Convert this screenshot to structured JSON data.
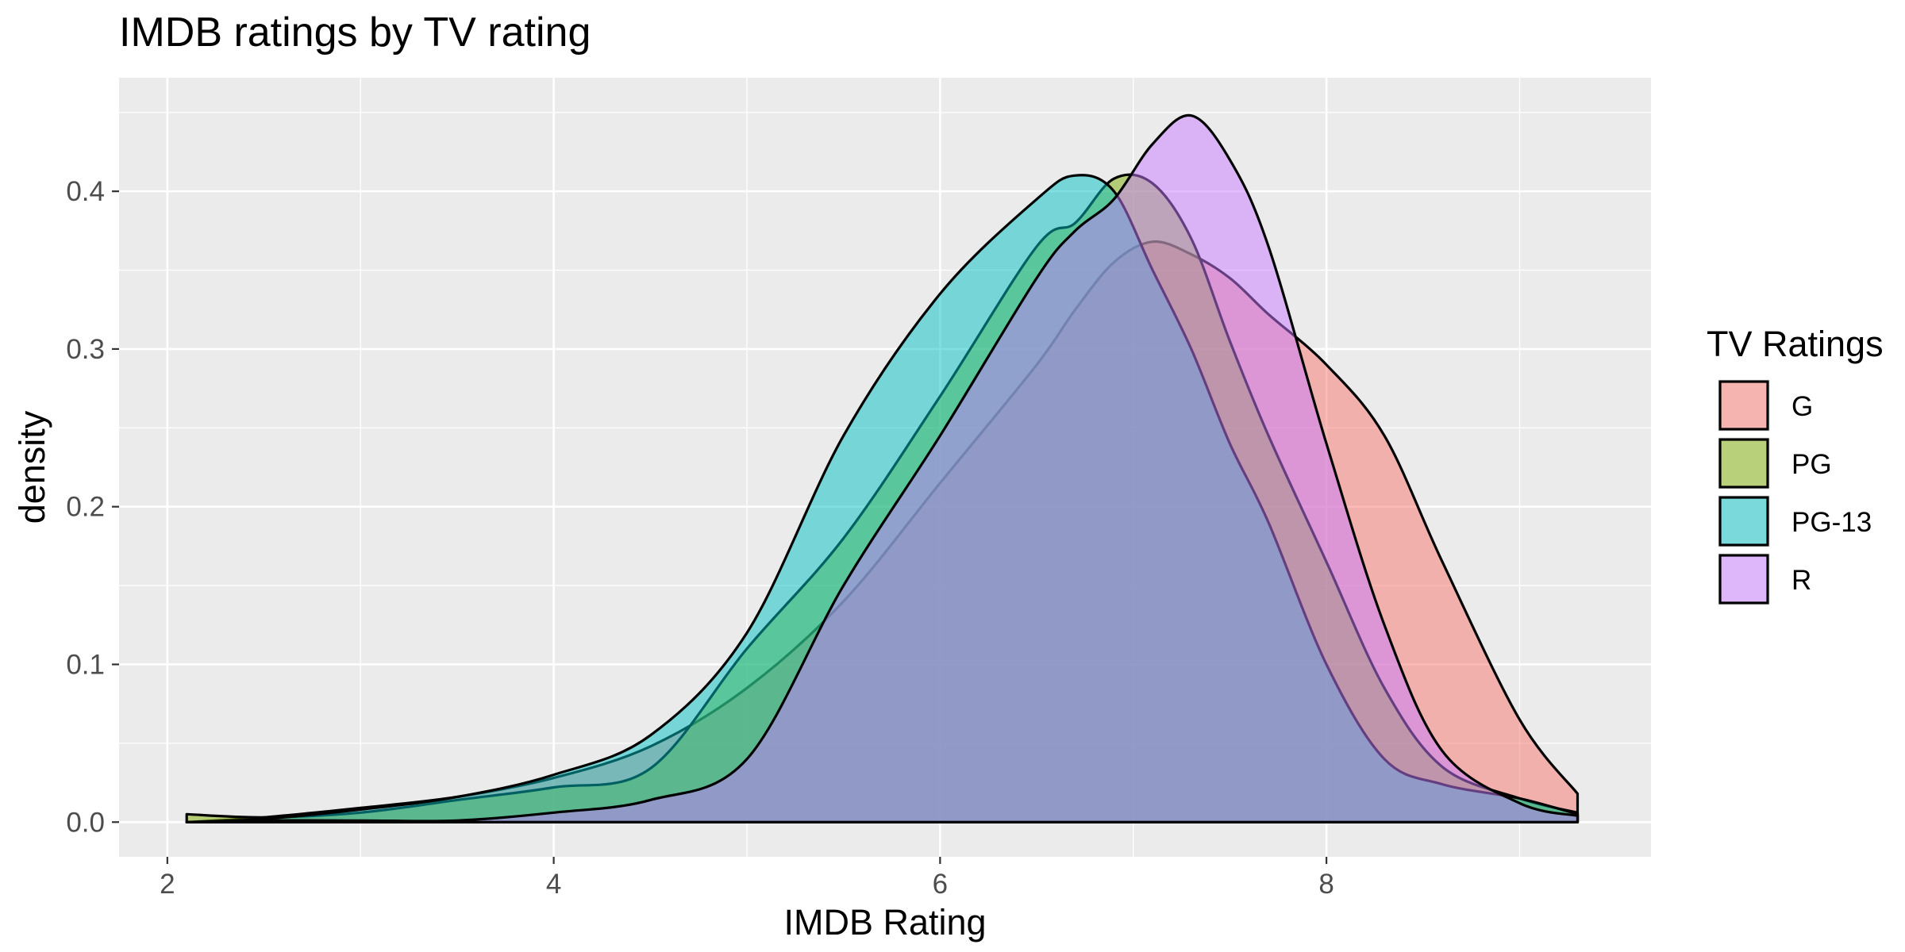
{
  "chart_data": {
    "type": "area",
    "title": "IMDB ratings by TV rating",
    "xlabel": "IMDB Rating",
    "ylabel": "density",
    "xlim": [
      1.75,
      9.68
    ],
    "ylim": [
      -0.022,
      0.472
    ],
    "x_ticks": [
      2,
      4,
      6,
      8
    ],
    "x_tick_labels": [
      "2",
      "4",
      "6",
      "8"
    ],
    "y_ticks": [
      0.0,
      0.1,
      0.2,
      0.3,
      0.4
    ],
    "y_tick_labels": [
      "0.0",
      "0.1",
      "0.2",
      "0.3",
      "0.4"
    ],
    "grid": true,
    "legend": {
      "title": "TV Ratings",
      "position": "right"
    },
    "x": [
      2.1,
      2.5,
      3.0,
      3.5,
      4.0,
      4.5,
      5.0,
      5.5,
      6.0,
      6.5,
      6.7,
      6.9,
      7.1,
      7.3,
      7.5,
      7.7,
      8.0,
      8.3,
      8.6,
      9.0,
      9.3
    ],
    "series": [
      {
        "name": "G",
        "color": "#F8766D",
        "values": [
          0.0,
          0.003,
          0.009,
          0.016,
          0.028,
          0.048,
          0.085,
          0.14,
          0.215,
          0.29,
          0.325,
          0.355,
          0.368,
          0.36,
          0.345,
          0.322,
          0.29,
          0.245,
          0.165,
          0.065,
          0.018
        ]
      },
      {
        "name": "PG",
        "color": "#7CAE00",
        "values": [
          0.005,
          0.003,
          0.006,
          0.014,
          0.022,
          0.034,
          0.11,
          0.18,
          0.27,
          0.365,
          0.38,
          0.408,
          0.405,
          0.37,
          0.305,
          0.245,
          0.165,
          0.085,
          0.035,
          0.015,
          0.006
        ]
      },
      {
        "name": "PG-13",
        "color": "#00BFC4",
        "values": [
          0.0,
          0.002,
          0.008,
          0.016,
          0.03,
          0.055,
          0.12,
          0.245,
          0.335,
          0.395,
          0.41,
          0.4,
          0.35,
          0.3,
          0.24,
          0.19,
          0.1,
          0.04,
          0.024,
          0.015,
          0.005
        ]
      },
      {
        "name": "R",
        "color": "#C77CFF",
        "values": [
          0.0,
          0.001,
          0.001,
          0.001,
          0.006,
          0.014,
          0.04,
          0.15,
          0.245,
          0.345,
          0.375,
          0.395,
          0.43,
          0.448,
          0.42,
          0.365,
          0.24,
          0.125,
          0.045,
          0.012,
          0.004
        ]
      }
    ]
  }
}
